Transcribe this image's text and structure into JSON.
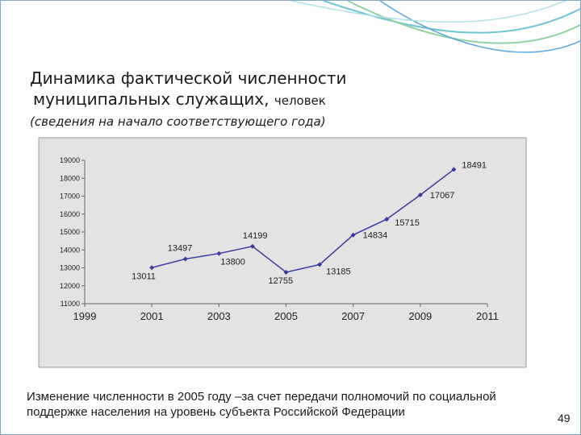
{
  "slide": {
    "title_line1": "Динамика фактической численности",
    "title_line2": "муниципальных служащих,",
    "title_unit": "человек",
    "subtitle": "(сведения на начало соответствующего года)",
    "note": "Изменение численности в 2005 году –за счет передачи полномочий по социальной поддержке населения на уровень субъекта Российской Федерации",
    "page_number": 49
  },
  "chart_data": {
    "type": "line",
    "x": [
      2001,
      2002,
      2003,
      2004,
      2005,
      2006,
      2007,
      2008,
      2009,
      2010
    ],
    "values": [
      13011,
      13497,
      13800,
      14199,
      12755,
      13185,
      14834,
      15715,
      17067,
      18491
    ],
    "color": "#3a3aa0",
    "xlim": [
      1999,
      2011
    ],
    "xticks": [
      1999,
      2001,
      2003,
      2005,
      2007,
      2009,
      2011
    ],
    "ylim": [
      11000,
      19000
    ],
    "yticks": [
      11000,
      12000,
      13000,
      14000,
      15000,
      16000,
      17000,
      18000,
      19000
    ]
  }
}
